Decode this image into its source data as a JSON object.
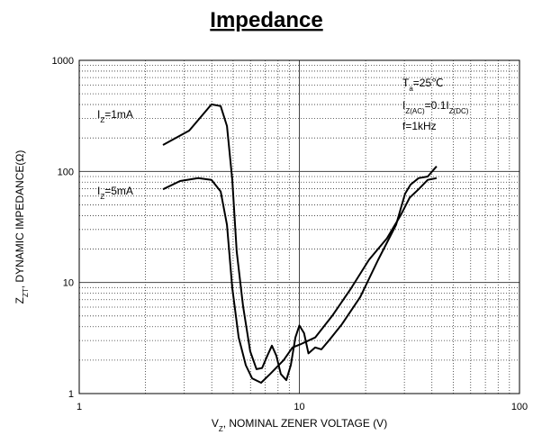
{
  "chart_data": {
    "type": "line",
    "title": "Impedance",
    "xlabel": [
      "V",
      "Z",
      ", NOMINAL ZENER VOLTAGE (V)"
    ],
    "ylabel": [
      "Z",
      "ZT",
      ", DYNAMIC IMPEDANCE(Ω)"
    ],
    "annotations": [
      [
        "T",
        "a",
        "=25℃"
      ],
      [
        "I",
        "Z(AC)",
        "=0.1I",
        "Z(DC)"
      ],
      [
        "f=1kHz"
      ]
    ],
    "xscale": "log",
    "yscale": "log",
    "grid": true,
    "minor_grid": true,
    "xlim": [
      1,
      100
    ],
    "ylim": [
      1,
      1000
    ],
    "xticks": [
      1,
      10,
      100
    ],
    "yticks": [
      1,
      10,
      100,
      1000
    ],
    "series": [
      {
        "name": [
          "I",
          "Z",
          "=1mA"
        ],
        "color": "#000000",
        "x": [
          2.4,
          3.16,
          3.99,
          4.39,
          4.69,
          4.96,
          5.19,
          5.55,
          5.98,
          6.39,
          6.77,
          7.16,
          7.5,
          7.86,
          8.24,
          8.72,
          9.14,
          9.59,
          10,
          10.5,
          11,
          11.8,
          12.6,
          13.6,
          15.6,
          18.9,
          22.8,
          27.5,
          30.2,
          32,
          34.8,
          38.3,
          42
        ],
        "values": [
          173,
          233,
          401,
          387,
          256,
          84,
          19,
          6.1,
          2.4,
          1.66,
          1.7,
          2.2,
          2.7,
          2.2,
          1.5,
          1.32,
          1.8,
          3.2,
          4.1,
          3.5,
          2.3,
          2.6,
          2.5,
          3.0,
          4.2,
          7.4,
          16,
          33,
          63,
          76,
          87,
          90,
          111
        ]
      },
      {
        "name": [
          "I",
          "Z",
          "=5mA"
        ],
        "color": "#000000",
        "x": [
          2.4,
          2.87,
          3.47,
          3.99,
          4.39,
          4.69,
          4.96,
          5.3,
          5.71,
          6.1,
          6.7,
          7.36,
          8.48,
          9.31,
          10.2,
          11.8,
          14.2,
          17.2,
          20.7,
          25,
          28.8,
          31.7,
          34.8,
          38.3,
          42
        ],
        "values": [
          69,
          82,
          87,
          84,
          66,
          33,
          8.9,
          3.2,
          1.8,
          1.37,
          1.25,
          1.5,
          2.0,
          2.6,
          2.8,
          3.2,
          5.1,
          8.9,
          16,
          25,
          40,
          58,
          69,
          84,
          87
        ]
      }
    ]
  }
}
